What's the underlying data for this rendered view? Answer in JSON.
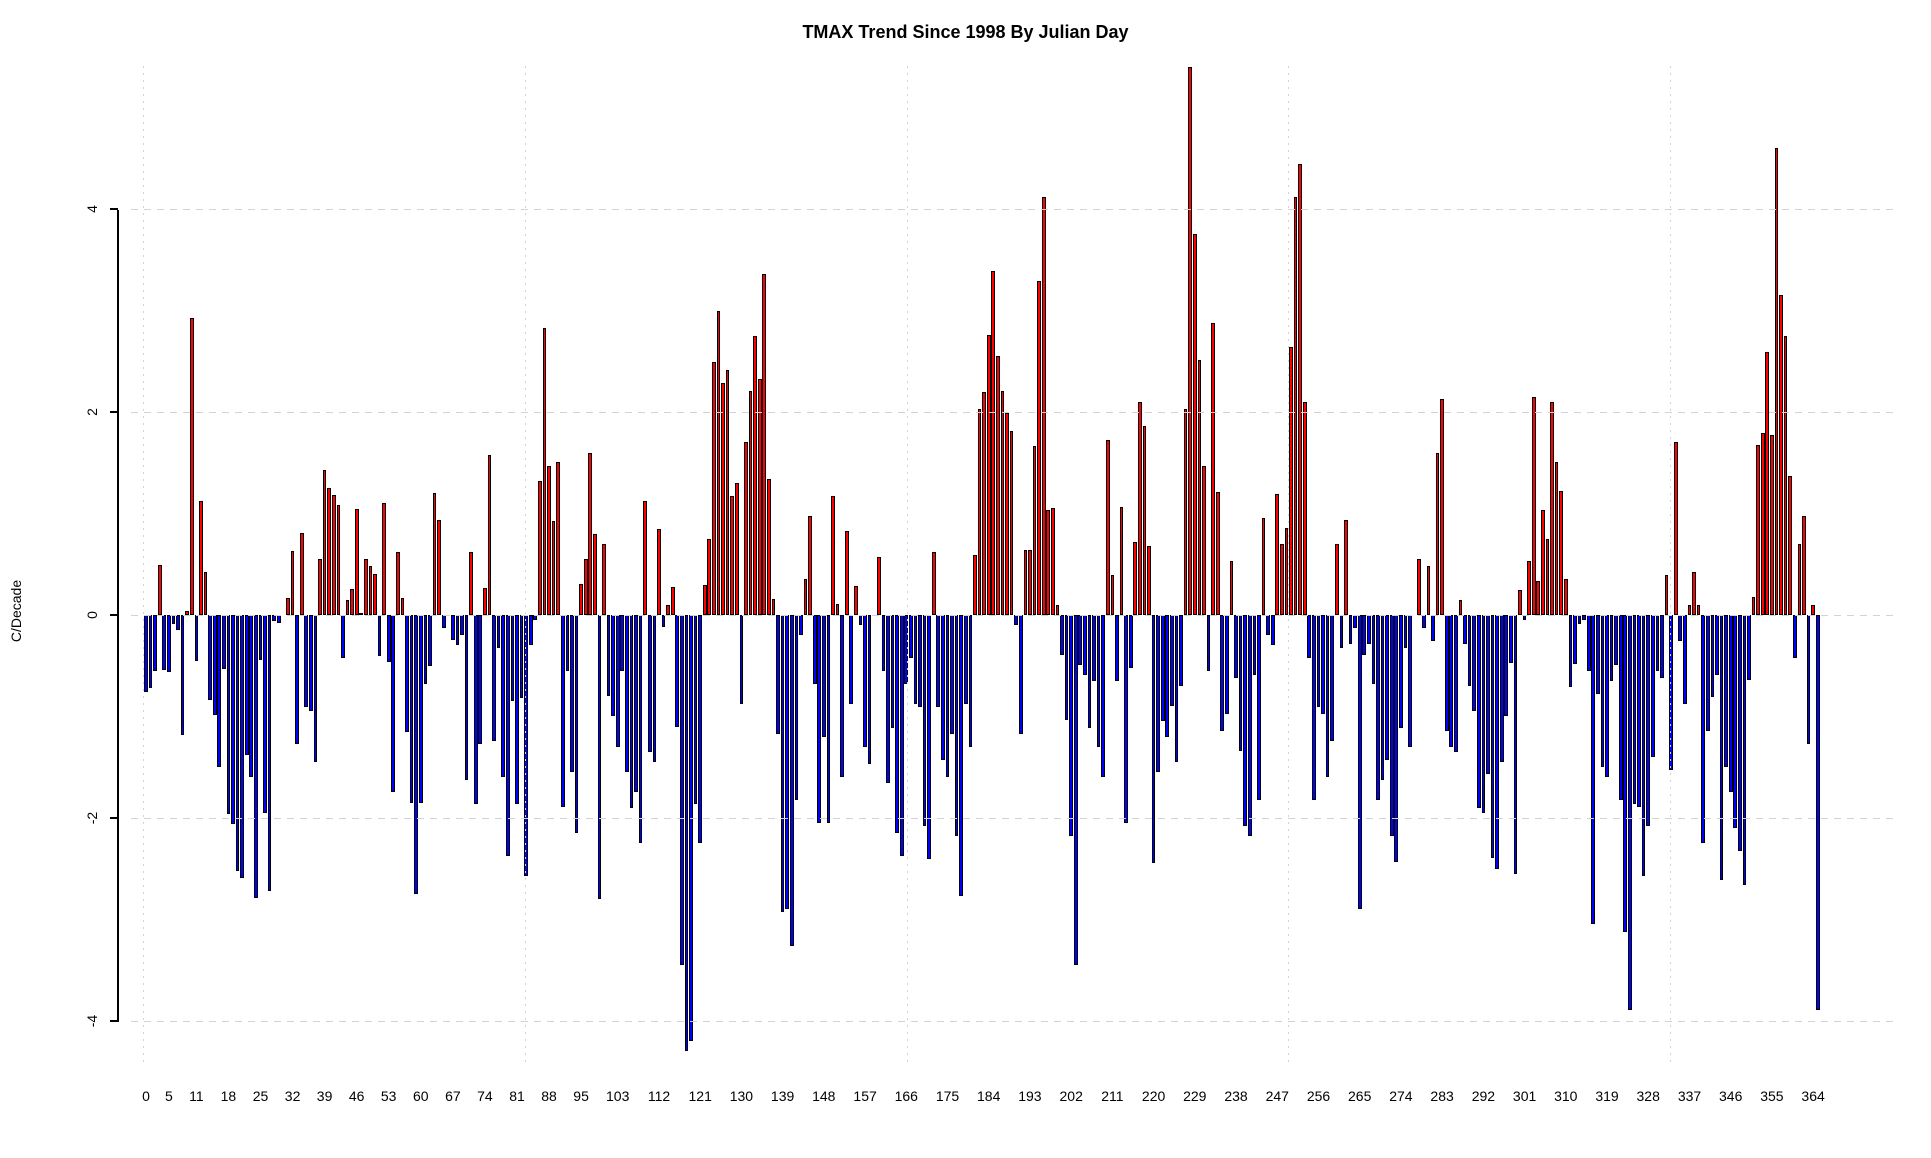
{
  "title": "TMAX Trend Since 1998 By Julian Day",
  "chart_data": {
    "type": "bar",
    "title": "TMAX Trend Since 1998 By Julian Day",
    "xlabel": "",
    "ylabel": "C/Decade",
    "x_unit": "julian-day",
    "x_start": 0,
    "ylim": [
      -4.5,
      5.5
    ],
    "yticks": [
      -4,
      -2,
      0,
      2,
      4
    ],
    "xticks": [
      0,
      5,
      11,
      18,
      25,
      32,
      39,
      46,
      53,
      60,
      67,
      74,
      81,
      88,
      95,
      103,
      112,
      121,
      130,
      139,
      148,
      157,
      166,
      175,
      184,
      193,
      202,
      211,
      220,
      229,
      238,
      247,
      256,
      265,
      274,
      283,
      292,
      301,
      310,
      319,
      328,
      337,
      346,
      355,
      364
    ],
    "grid": true,
    "legend": "none",
    "positive_color": "#ff0000",
    "negative_color": "#0000ff",
    "bar_border_color": "#000000",
    "gridline_color": "#d3d3d3",
    "values": [
      -0.76,
      -0.72,
      -0.55,
      0.49,
      -0.54,
      -0.56,
      -0.09,
      -0.15,
      -1.18,
      0.04,
      2.93,
      -0.45,
      1.12,
      0.42,
      -0.84,
      -0.99,
      -1.5,
      -0.53,
      -1.96,
      -2.06,
      -2.52,
      -2.59,
      -1.38,
      -1.6,
      -2.79,
      -0.44,
      -1.95,
      -2.72,
      -0.06,
      -0.08,
      0.0,
      0.17,
      0.63,
      -1.27,
      0.81,
      -0.91,
      -0.95,
      -1.45,
      0.55,
      1.43,
      1.25,
      1.18,
      1.08,
      -0.42,
      0.15,
      0.26,
      1.05,
      0.02,
      0.55,
      0.48,
      0.4,
      -0.4,
      1.1,
      -0.46,
      -1.75,
      0.62,
      0.17,
      -1.15,
      -1.85,
      -2.75,
      -1.85,
      -0.68,
      -0.5,
      1.2,
      0.94,
      -0.13,
      0.0,
      -0.25,
      -0.3,
      -0.2,
      -1.63,
      0.62,
      -1.86,
      -1.27,
      0.27,
      1.58,
      -1.24,
      -0.33,
      -1.6,
      -2.38,
      -0.85,
      -1.86,
      -0.82,
      -2.57,
      -0.3,
      -0.05,
      1.32,
      2.83,
      1.47,
      0.93,
      1.51,
      -1.89,
      -0.55,
      -1.55,
      -2.15,
      0.31,
      0.55,
      1.6,
      0.8,
      -2.8,
      0.7,
      -0.8,
      -1.0,
      -1.3,
      -0.55,
      -1.55,
      -1.9,
      -1.75,
      -2.25,
      1.12,
      -1.35,
      -1.45,
      0.85,
      -0.12,
      0.1,
      0.28,
      -1.1,
      -3.45,
      -4.3,
      -4.2,
      -1.86,
      -2.25,
      0.3,
      0.75,
      2.5,
      3.0,
      2.29,
      2.42,
      1.17,
      1.3,
      -0.88,
      1.71,
      2.21,
      2.75,
      2.33,
      3.36,
      1.34,
      0.16,
      -1.17,
      -2.93,
      -2.9,
      -3.26,
      -1.82,
      -0.2,
      0.36,
      0.98,
      -0.68,
      -2.05,
      -1.2,
      -2.05,
      1.17,
      0.11,
      -1.6,
      0.83,
      -0.88,
      0.29,
      -0.1,
      -1.3,
      -1.47,
      0.0,
      0.57,
      -0.55,
      -1.66,
      -1.11,
      -2.15,
      -2.38,
      -0.68,
      -0.42,
      -0.88,
      -0.91,
      -2.08,
      -2.41,
      0.62,
      -0.91,
      -1.43,
      -1.6,
      -1.17,
      -2.18,
      -2.77,
      -0.88,
      -1.3,
      0.59,
      2.03,
      2.2,
      2.76,
      3.39,
      2.55,
      2.21,
      1.99,
      1.81,
      -0.1,
      -1.17,
      0.64,
      0.64,
      1.67,
      3.29,
      4.12,
      1.04,
      1.06,
      0.1,
      -0.39,
      -1.04,
      -2.18,
      -3.45,
      -0.49,
      -0.59,
      -1.11,
      -0.65,
      -1.3,
      -1.6,
      1.73,
      0.39,
      -0.65,
      1.07,
      -2.05,
      -0.52,
      0.72,
      2.1,
      1.86,
      0.68,
      -2.45,
      -1.55,
      -1.05,
      -1.2,
      -0.9,
      -1.45,
      -0.7,
      2.03,
      5.4,
      3.76,
      2.51,
      1.47,
      -0.55,
      2.88,
      1.21,
      -1.14,
      -0.98,
      0.53,
      -0.62,
      -1.34,
      -2.08,
      -2.18,
      -0.59,
      -1.82,
      0.96,
      -0.2,
      -0.3,
      1.19,
      0.7,
      0.86,
      2.64,
      4.12,
      4.45,
      2.1,
      -0.42,
      -1.82,
      -0.91,
      -0.98,
      -1.6,
      -1.24,
      0.7,
      -0.33,
      0.94,
      -0.29,
      -0.13,
      -2.9,
      -0.39,
      -0.29,
      -0.68,
      -1.82,
      -1.63,
      -1.43,
      -2.18,
      -2.44,
      -1.11,
      -0.33,
      -1.3,
      0.0,
      0.55,
      -0.13,
      0.48,
      -0.26,
      1.6,
      2.13,
      -1.14,
      -1.3,
      -1.35,
      0.15,
      -0.29,
      -0.7,
      -0.95,
      -1.9,
      -1.95,
      -1.57,
      -2.4,
      -2.5,
      -1.45,
      -1.0,
      -0.47,
      -2.55,
      0.25,
      -0.05,
      0.53,
      2.15,
      0.34,
      1.04,
      0.75,
      2.1,
      1.51,
      1.22,
      0.36,
      -0.71,
      -0.48,
      -0.09,
      -0.05,
      -0.55,
      -3.05,
      -0.78,
      -1.5,
      -1.6,
      -0.65,
      -0.49,
      -1.82,
      -3.13,
      -3.9,
      -1.86,
      -1.89,
      -2.57,
      -2.08,
      -1.4,
      -0.55,
      -0.62,
      0.39,
      -1.53,
      1.71,
      -0.26,
      -0.88,
      0.1,
      0.42,
      0.1,
      -2.25,
      -1.14,
      -0.81,
      -0.59,
      -2.61,
      -1.5,
      -1.75,
      -2.1,
      -2.33,
      -2.66,
      -0.64,
      0.18,
      1.68,
      1.79,
      2.59,
      1.78,
      4.61,
      3.16,
      2.75,
      1.37,
      -0.42,
      0.7,
      0.98,
      -1.27,
      0.1,
      -3.9
    ]
  }
}
